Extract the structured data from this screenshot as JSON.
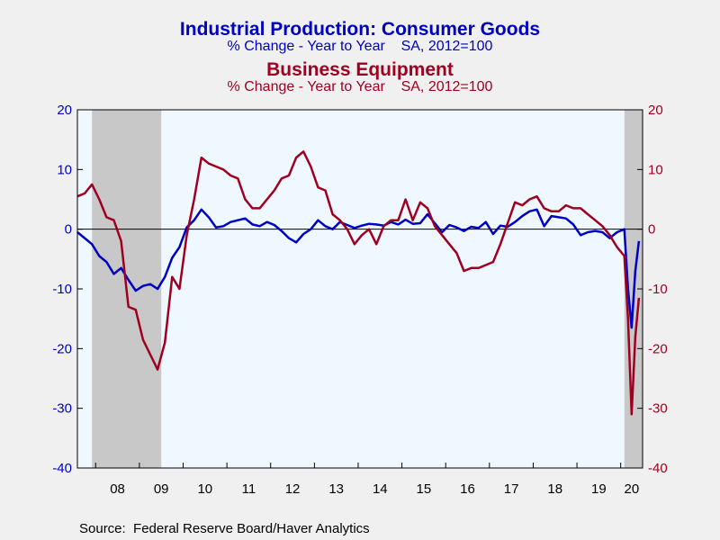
{
  "chart_data": {
    "type": "line",
    "title": "Industrial Production: Consumer Goods",
    "subtitle": "% Change - Year to Year    SA, 2012=100",
    "title2": "Business Equipment",
    "subtitle2": "% Change - Year to Year    SA, 2012=100",
    "source": "Source:  Federal Reserve Board/Haver Analytics",
    "x_start": "2007-08",
    "x_end": "2020-06",
    "x_tick_labels": [
      "08",
      "09",
      "10",
      "11",
      "12",
      "13",
      "14",
      "15",
      "16",
      "17",
      "18",
      "19",
      "20"
    ],
    "ylim_left": [
      -40,
      20
    ],
    "ylim_right": [
      -40,
      20
    ],
    "y_ticks_left": [
      "20",
      "10",
      "0",
      "-10",
      "-20",
      "-30",
      "-40"
    ],
    "y_ticks_right": [
      "20",
      "10",
      "0",
      "-10",
      "-20",
      "-30",
      "-40"
    ],
    "recession_shading": [
      [
        "2007-12",
        "2009-06"
      ],
      [
        "2020-02",
        "2020-06"
      ]
    ],
    "colors": {
      "consumer": "#0000c0",
      "equipment": "#a00020",
      "recession": "#c8c8c8",
      "plot_bg": "#f0f8ff"
    },
    "series": [
      {
        "name": "Industrial Production: Consumer Goods",
        "axis": "left",
        "x": [
          "2007-08",
          "2007-10",
          "2007-12",
          "2008-02",
          "2008-04",
          "2008-06",
          "2008-08",
          "2008-10",
          "2008-12",
          "2009-02",
          "2009-04",
          "2009-06",
          "2009-08",
          "2009-10",
          "2009-12",
          "2010-02",
          "2010-04",
          "2010-06",
          "2010-08",
          "2010-10",
          "2010-12",
          "2011-02",
          "2011-04",
          "2011-06",
          "2011-08",
          "2011-10",
          "2011-12",
          "2012-02",
          "2012-04",
          "2012-06",
          "2012-08",
          "2012-10",
          "2012-12",
          "2013-02",
          "2013-04",
          "2013-06",
          "2013-08",
          "2013-10",
          "2013-12",
          "2014-02",
          "2014-04",
          "2014-06",
          "2014-08",
          "2014-10",
          "2014-12",
          "2015-02",
          "2015-04",
          "2015-06",
          "2015-08",
          "2015-10",
          "2015-12",
          "2016-02",
          "2016-04",
          "2016-06",
          "2016-08",
          "2016-10",
          "2016-12",
          "2017-02",
          "2017-04",
          "2017-06",
          "2017-08",
          "2017-10",
          "2017-12",
          "2018-02",
          "2018-04",
          "2018-06",
          "2018-08",
          "2018-10",
          "2018-12",
          "2019-02",
          "2019-04",
          "2019-06",
          "2019-08",
          "2019-10",
          "2019-12",
          "2020-02",
          "2020-03",
          "2020-04",
          "2020-05",
          "2020-06"
        ],
        "values": [
          -0.5,
          -1.5,
          -2.5,
          -4.5,
          -5.5,
          -7.5,
          -6.5,
          -8.5,
          -10.3,
          -9.5,
          -9.2,
          -10.0,
          -8.0,
          -4.8,
          -3.0,
          0.3,
          1.5,
          3.3,
          2.0,
          0.3,
          0.5,
          1.2,
          1.5,
          1.8,
          0.8,
          0.5,
          1.2,
          0.7,
          -0.3,
          -1.5,
          -2.2,
          -0.8,
          0.0,
          1.5,
          0.5,
          0.0,
          1.2,
          0.7,
          0.2,
          0.6,
          0.9,
          0.8,
          0.6,
          1.2,
          0.8,
          1.6,
          0.9,
          1.0,
          2.5,
          1.0,
          -0.5,
          0.7,
          0.3,
          -0.3,
          0.4,
          0.2,
          1.2,
          -0.8,
          0.6,
          0.4,
          1.2,
          2.2,
          3.0,
          3.3,
          0.5,
          2.2,
          2.0,
          1.8,
          0.8,
          -1.0,
          -0.5,
          -0.3,
          -0.5,
          -1.5,
          -0.5,
          0.0,
          -10.0,
          -16.5,
          -7.0,
          -2.0
        ]
      },
      {
        "name": "Business Equipment",
        "axis": "right",
        "x": [
          "2007-08",
          "2007-10",
          "2007-12",
          "2008-02",
          "2008-04",
          "2008-06",
          "2008-08",
          "2008-10",
          "2008-12",
          "2009-02",
          "2009-04",
          "2009-06",
          "2009-08",
          "2009-10",
          "2009-12",
          "2010-02",
          "2010-04",
          "2010-06",
          "2010-08",
          "2010-10",
          "2010-12",
          "2011-02",
          "2011-04",
          "2011-06",
          "2011-08",
          "2011-10",
          "2011-12",
          "2012-02",
          "2012-04",
          "2012-06",
          "2012-08",
          "2012-10",
          "2012-12",
          "2013-02",
          "2013-04",
          "2013-06",
          "2013-08",
          "2013-10",
          "2013-12",
          "2014-02",
          "2014-04",
          "2014-06",
          "2014-08",
          "2014-10",
          "2014-12",
          "2015-02",
          "2015-04",
          "2015-06",
          "2015-08",
          "2015-10",
          "2015-12",
          "2016-02",
          "2016-04",
          "2016-06",
          "2016-08",
          "2016-10",
          "2016-12",
          "2017-02",
          "2017-04",
          "2017-06",
          "2017-08",
          "2017-10",
          "2017-12",
          "2018-02",
          "2018-04",
          "2018-06",
          "2018-08",
          "2018-10",
          "2018-12",
          "2019-02",
          "2019-04",
          "2019-06",
          "2019-08",
          "2019-10",
          "2019-12",
          "2020-02",
          "2020-03",
          "2020-04",
          "2020-05",
          "2020-06"
        ],
        "values": [
          5.5,
          6.0,
          7.5,
          5.0,
          2.0,
          1.5,
          -2.0,
          -13.0,
          -13.5,
          -18.5,
          -21.0,
          -23.5,
          -19.0,
          -8.0,
          -10.0,
          -1.0,
          5.0,
          12.0,
          11.0,
          10.5,
          10.0,
          9.0,
          8.5,
          5.0,
          3.5,
          3.5,
          5.0,
          6.5,
          8.5,
          9.0,
          12.0,
          13.0,
          10.5,
          7.0,
          6.5,
          2.5,
          1.5,
          0.0,
          -2.5,
          -1.0,
          0.0,
          -2.5,
          0.5,
          1.5,
          1.5,
          5.0,
          1.5,
          4.5,
          3.5,
          0.5,
          -1.0,
          -2.5,
          -4.0,
          -7.0,
          -6.5,
          -6.5,
          -6.0,
          -5.5,
          -2.5,
          1.0,
          4.5,
          4.0,
          5.0,
          5.5,
          3.5,
          3.0,
          3.0,
          4.0,
          3.5,
          3.5,
          2.5,
          1.5,
          0.5,
          -1.0,
          -3.0,
          -4.5,
          -15.0,
          -31.0,
          -18.0,
          -11.5
        ]
      }
    ]
  }
}
